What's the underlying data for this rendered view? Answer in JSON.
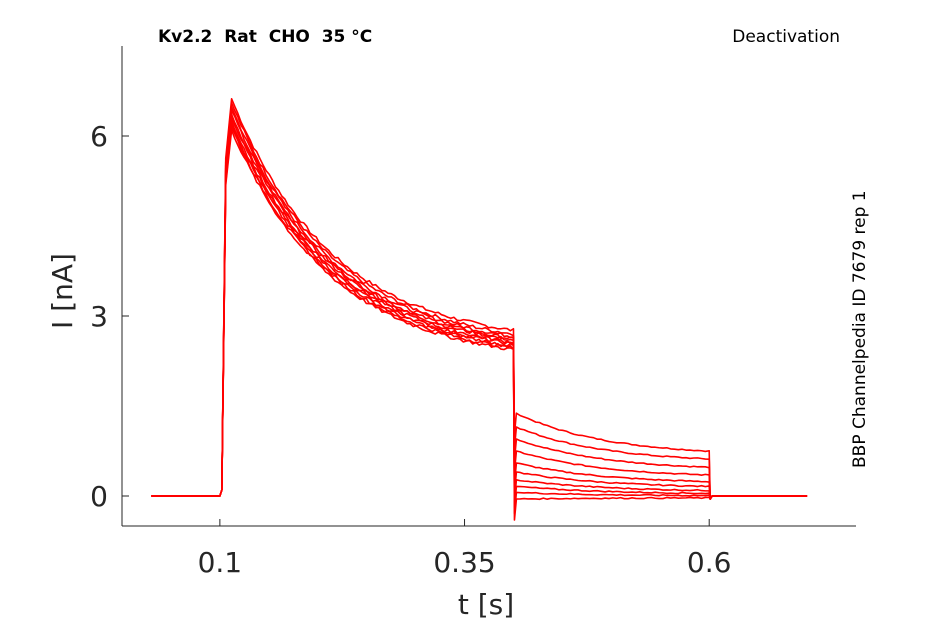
{
  "chart_data": {
    "type": "line",
    "title": "Kv2.2  Rat  CHO  35 °C",
    "protocol": "Deactivation",
    "side_label": "BBP Channelpedia ID 7679 rep 1",
    "xlabel": "t [s]",
    "ylabel": "I [nA]",
    "xlim": [
      0.0,
      0.75
    ],
    "ylim": [
      -0.5,
      7.5
    ],
    "xticks": [
      0.1,
      0.35,
      0.6
    ],
    "xtick_labels": [
      "0.1",
      "0.35",
      "0.6"
    ],
    "yticks": [
      0,
      3,
      6
    ],
    "ytick_labels": [
      "0",
      "3",
      "6"
    ],
    "grid": false,
    "line_color": "#ff0000",
    "protocol_times": {
      "start": 0.03,
      "step_on": 0.1,
      "peak": 0.112,
      "step_off": 0.4,
      "tail_end": 0.6,
      "end": 0.7
    },
    "series": [
      {
        "peak": 6.62,
        "end_step": 2.76,
        "tail_start": 1.38,
        "tail_end": 0.67
      },
      {
        "peak": 6.55,
        "end_step": 2.7,
        "tail_start": 1.15,
        "tail_end": 0.55
      },
      {
        "peak": 6.48,
        "end_step": 2.66,
        "tail_start": 0.95,
        "tail_end": 0.42
      },
      {
        "peak": 6.42,
        "end_step": 2.62,
        "tail_start": 0.75,
        "tail_end": 0.3
      },
      {
        "peak": 6.36,
        "end_step": 2.6,
        "tail_start": 0.55,
        "tail_end": 0.2
      },
      {
        "peak": 6.3,
        "end_step": 2.56,
        "tail_start": 0.4,
        "tail_end": 0.13
      },
      {
        "peak": 6.25,
        "end_step": 2.53,
        "tail_start": 0.27,
        "tail_end": 0.07
      },
      {
        "peak": 6.2,
        "end_step": 2.5,
        "tail_start": 0.16,
        "tail_end": 0.03
      },
      {
        "peak": 6.15,
        "end_step": 2.47,
        "tail_start": 0.06,
        "tail_end": 0.0
      },
      {
        "peak": 6.1,
        "end_step": 2.44,
        "tail_start": -0.05,
        "tail_end": -0.03
      }
    ]
  }
}
